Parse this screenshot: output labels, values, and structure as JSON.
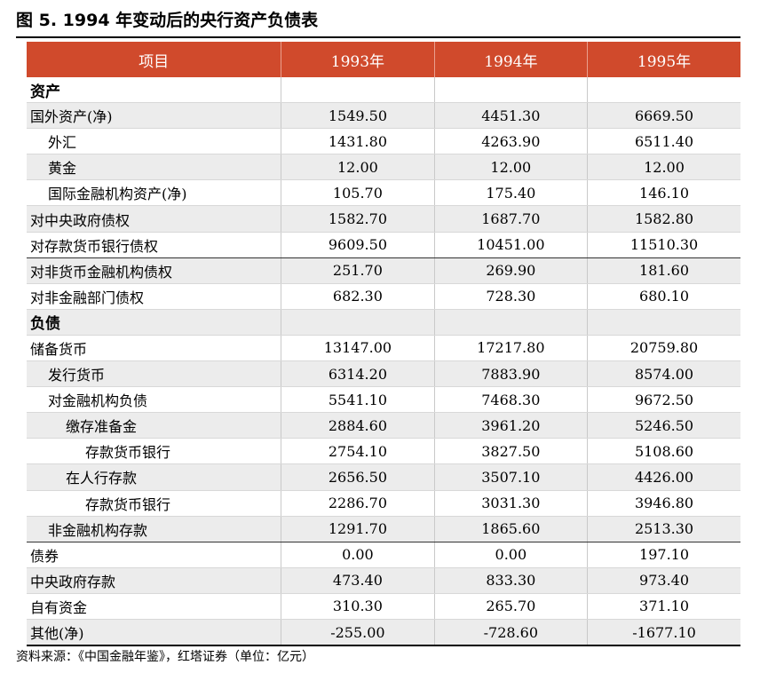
{
  "title": "图 5. 1994 年变动后的央行资产负债表",
  "table": {
    "headers": [
      "项目",
      "1993年",
      "1994年",
      "1995年"
    ],
    "rows": [
      {
        "label": "资产",
        "v1": "",
        "v2": "",
        "v3": "",
        "indent": 0,
        "section": true,
        "shaded": false
      },
      {
        "label": "国外资产(净)",
        "v1": "1549.50",
        "v2": "4451.30",
        "v3": "6669.50",
        "indent": 0,
        "shaded": true
      },
      {
        "label": "外汇",
        "v1": "1431.80",
        "v2": "4263.90",
        "v3": "6511.40",
        "indent": 1,
        "shaded": false
      },
      {
        "label": "黄金",
        "v1": "12.00",
        "v2": "12.00",
        "v3": "12.00",
        "indent": 1,
        "shaded": true
      },
      {
        "label": "国际金融机构资产(净)",
        "v1": "105.70",
        "v2": "175.40",
        "v3": "146.10",
        "indent": 1,
        "shaded": false
      },
      {
        "label": "对中央政府债权",
        "v1": "1582.70",
        "v2": "1687.70",
        "v3": "1582.80",
        "indent": 0,
        "shaded": true
      },
      {
        "label": "对存款货币银行债权",
        "v1": "9609.50",
        "v2": "10451.00",
        "v3": "11510.30",
        "indent": 0,
        "shaded": false,
        "thick": true
      },
      {
        "label": "对非货币金融机构债权",
        "v1": "251.70",
        "v2": "269.90",
        "v3": "181.60",
        "indent": 0,
        "shaded": true
      },
      {
        "label": "对非金融部门债权",
        "v1": "682.30",
        "v2": "728.30",
        "v3": "680.10",
        "indent": 0,
        "shaded": false
      },
      {
        "label": "负债",
        "v1": "",
        "v2": "",
        "v3": "",
        "indent": 0,
        "section": true,
        "shaded": true
      },
      {
        "label": "储备货币",
        "v1": "13147.00",
        "v2": "17217.80",
        "v3": "20759.80",
        "indent": 0,
        "shaded": false
      },
      {
        "label": "发行货币",
        "v1": "6314.20",
        "v2": "7883.90",
        "v3": "8574.00",
        "indent": 1,
        "shaded": true
      },
      {
        "label": "对金融机构负债",
        "v1": "5541.10",
        "v2": "7468.30",
        "v3": "9672.50",
        "indent": 1,
        "shaded": false
      },
      {
        "label": "缴存准备金",
        "v1": "2884.60",
        "v2": "3961.20",
        "v3": "5246.50",
        "indent": 2,
        "shaded": true
      },
      {
        "label": "存款货币银行",
        "v1": "2754.10",
        "v2": "3827.50",
        "v3": "5108.60",
        "indent": 3,
        "shaded": false
      },
      {
        "label": "在人行存款",
        "v1": "2656.50",
        "v2": "3507.10",
        "v3": "4426.00",
        "indent": 2,
        "shaded": true
      },
      {
        "label": "存款货币银行",
        "v1": "2286.70",
        "v2": "3031.30",
        "v3": "3946.80",
        "indent": 3,
        "shaded": false
      },
      {
        "label": "非金融机构存款",
        "v1": "1291.70",
        "v2": "1865.60",
        "v3": "2513.30",
        "indent": 1,
        "shaded": true,
        "thick": true
      },
      {
        "label": "债券",
        "v1": "0.00",
        "v2": "0.00",
        "v3": "197.10",
        "indent": 0,
        "shaded": false
      },
      {
        "label": "中央政府存款",
        "v1": "473.40",
        "v2": "833.30",
        "v3": "973.40",
        "indent": 0,
        "shaded": true
      },
      {
        "label": "自有资金",
        "v1": "310.30",
        "v2": "265.70",
        "v3": "371.10",
        "indent": 0,
        "shaded": false
      },
      {
        "label": "其他(净)",
        "v1": "-255.00",
        "v2": "-728.60",
        "v3": "-1677.10",
        "indent": 0,
        "shaded": true
      }
    ]
  },
  "source": "资料来源：《中国金融年鉴》，红塔证券（单位：亿元）",
  "colors": {
    "header_bg": "#d04a2c",
    "header_text": "#ffffff",
    "row_shade": "#ececec"
  }
}
